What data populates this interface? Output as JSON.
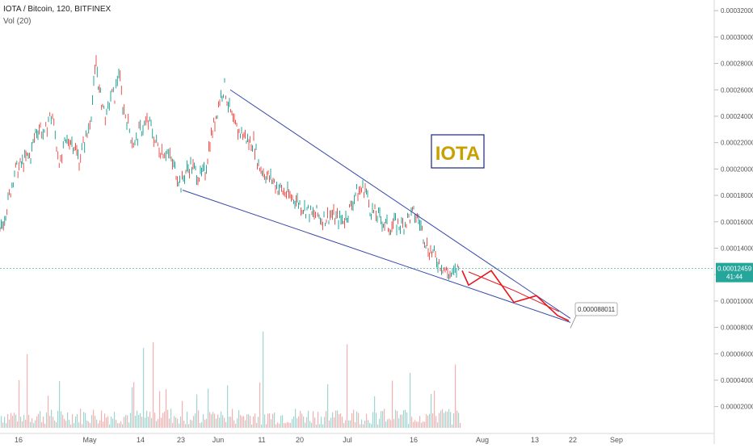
{
  "header": {
    "symbol": "IOTA / Bitcoin, 120, BITFINEX",
    "volume_indicator": "Vol (20)"
  },
  "annotations": {
    "logo_text": "IOTA",
    "target_label": "0.000088011",
    "price_badge": "0.00012459",
    "countdown": "41:44"
  },
  "colors": {
    "up": "#26a69a",
    "down": "#ef5350",
    "trendline": "#3949ab",
    "projection": "#e8141a",
    "logo_text": "#c8a000",
    "logo_border": "#1a237e",
    "price_badge": "#26a69a"
  },
  "chart_data": {
    "type": "line",
    "ylim": [
      1e-05,
      0.000325
    ],
    "x_tick_labels": [
      "16",
      "May",
      "14",
      "23",
      "Jun",
      "11",
      "20",
      "Jul",
      "16",
      "Aug",
      "13",
      "22",
      "Sep"
    ],
    "y_tick_labels": [
      "0.000020000",
      "0.000040000",
      "0.000060000",
      "0.000080000",
      "0.000100000",
      "0.000120000",
      "0.000140000",
      "0.000160000",
      "0.000180000",
      "0.000200000",
      "0.000220000",
      "0.000240000",
      "0.000260000",
      "0.000280000",
      "0.000300000",
      "0.000320000"
    ],
    "y_tick_values": [
      2e-05,
      4e-05,
      6e-05,
      8e-05,
      0.0001,
      0.00012,
      0.00014,
      0.00016,
      0.00018,
      0.0002,
      0.00022,
      0.00024,
      0.00026,
      0.00028,
      0.0003,
      0.00032
    ],
    "current_price": 0.00012459,
    "target_price": 8.8011e-05,
    "price_series": [
      [
        0,
        0.000151
      ],
      [
        10,
        0.000175
      ],
      [
        18,
        0.000198
      ],
      [
        25,
        0.000202
      ],
      [
        32,
        0.000208
      ],
      [
        38,
        0.00021
      ],
      [
        44,
        0.000228
      ],
      [
        50,
        0.000232
      ],
      [
        55,
        0.000224
      ],
      [
        60,
        0.000238
      ],
      [
        65,
        0.00024
      ],
      [
        70,
        0.000218
      ],
      [
        75,
        0.000203
      ],
      [
        80,
        0.000218
      ],
      [
        86,
        0.000223
      ],
      [
        92,
        0.000218
      ],
      [
        98,
        0.000207
      ],
      [
        103,
        0.000218
      ],
      [
        108,
        0.000226
      ],
      [
        113,
        0.000243
      ],
      [
        116,
        0.000262
      ],
      [
        119,
        0.000282
      ],
      [
        123,
        0.000258
      ],
      [
        127,
        0.000248
      ],
      [
        132,
        0.000238
      ],
      [
        137,
        0.000256
      ],
      [
        142,
        0.000255
      ],
      [
        147,
        0.000275
      ],
      [
        152,
        0.000248
      ],
      [
        157,
        0.000238
      ],
      [
        162,
        0.000225
      ],
      [
        167,
        0.000218
      ],
      [
        172,
        0.000228
      ],
      [
        177,
        0.000232
      ],
      [
        182,
        0.000236
      ],
      [
        187,
        0.000232
      ],
      [
        192,
        0.000221
      ],
      [
        197,
        0.000216
      ],
      [
        202,
        0.000214
      ],
      [
        207,
        0.000213
      ],
      [
        212,
        0.000206
      ],
      [
        218,
        0.000198
      ],
      [
        224,
        0.000188
      ],
      [
        230,
        0.000198
      ],
      [
        236,
        0.000203
      ],
      [
        242,
        0.000198
      ],
      [
        248,
        0.000194
      ],
      [
        254,
        0.000198
      ],
      [
        260,
        0.000222
      ],
      [
        266,
        0.000236
      ],
      [
        272,
        0.000253
      ],
      [
        278,
        0.000262
      ],
      [
        284,
        0.000245
      ],
      [
        290,
        0.000233
      ],
      [
        296,
        0.000228
      ],
      [
        302,
        0.000226
      ],
      [
        308,
        0.00022
      ],
      [
        314,
        0.000221
      ],
      [
        320,
        0.000203
      ],
      [
        326,
        0.000198
      ],
      [
        332,
        0.000194
      ],
      [
        338,
        0.000191
      ],
      [
        344,
        0.000186
      ],
      [
        350,
        0.000183
      ],
      [
        356,
        0.000181
      ],
      [
        362,
        0.000178
      ],
      [
        368,
        0.000176
      ],
      [
        374,
        0.000171
      ],
      [
        380,
        0.000169
      ],
      [
        386,
        0.000165
      ],
      [
        392,
        0.000166
      ],
      [
        398,
        0.000162
      ],
      [
        404,
        0.000163
      ],
      [
        410,
        0.000166
      ],
      [
        416,
        0.000163
      ],
      [
        422,
        0.000161
      ],
      [
        428,
        0.000163
      ],
      [
        434,
        0.000171
      ],
      [
        440,
        0.000181
      ],
      [
        446,
        0.000184
      ],
      [
        452,
        0.000186
      ],
      [
        458,
        0.00017
      ],
      [
        464,
        0.000166
      ],
      [
        470,
        0.000163
      ],
      [
        476,
        0.000158
      ],
      [
        482,
        0.000156
      ],
      [
        488,
        0.000159
      ],
      [
        494,
        0.000157
      ],
      [
        500,
        0.000158
      ],
      [
        506,
        0.000163
      ],
      [
        512,
        0.000166
      ],
      [
        518,
        0.000162
      ],
      [
        524,
        0.00015
      ],
      [
        530,
        0.00014
      ],
      [
        536,
        0.000136
      ],
      [
        542,
        0.00013
      ],
      [
        548,
        0.000126
      ],
      [
        554,
        0.000121
      ],
      [
        560,
        0.000119
      ],
      [
        565,
        0.000123
      ],
      [
        569,
        0.000125
      ]
    ],
    "trend_lines": [
      {
        "from": [
          285,
          0.00026
        ],
        "to": [
          706,
          8.68e-05
        ]
      },
      {
        "from": [
          226,
          0.000184
        ],
        "to": [
          706,
          8.38e-05
        ]
      }
    ],
    "projection_path": [
      [
        572,
        0.000123
      ],
      [
        580,
        0.000112
      ],
      [
        608,
        0.000123
      ],
      [
        636,
        9.9e-05
      ],
      [
        664,
        0.000104
      ],
      [
        690,
        8.9e-05
      ],
      [
        704,
        8.5e-05
      ]
    ],
    "projection_upper": [
      [
        580,
        0.000122
      ],
      [
        636,
        0.000108
      ],
      [
        664,
        0.0001
      ],
      [
        692,
        9.2e-05
      ]
    ],
    "volume_bars_note": "mixed green/red volume histogram along the bottom"
  }
}
